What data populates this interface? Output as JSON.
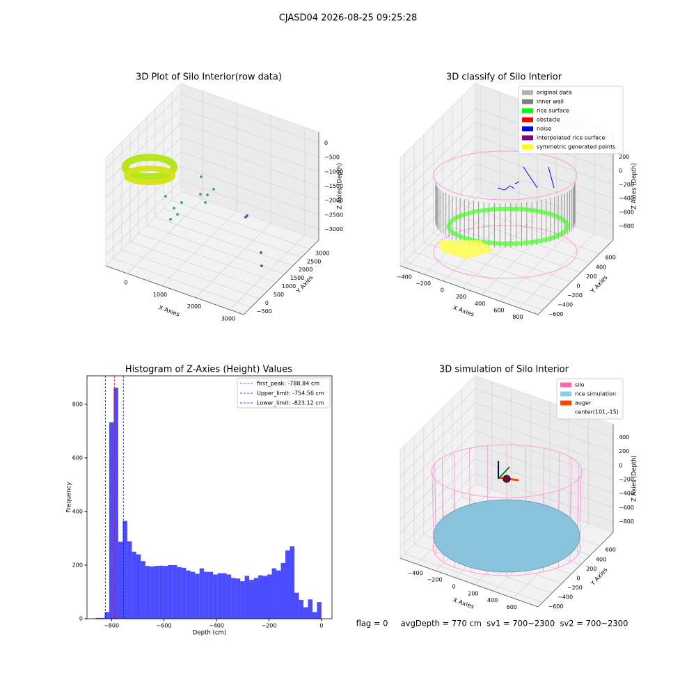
{
  "title": "CJASD04 2026-08-25 09:25:28",
  "chart_data": [
    {
      "type": "scatter3d",
      "title": "3D Plot of Silo Interior(row data)",
      "xlabel": "X Axies",
      "ylabel": "Y Axies",
      "zlabel": "Z Axies (Depth)",
      "xlim": [
        -635,
        3408
      ],
      "xticks": [
        0,
        1000,
        2000,
        3000
      ],
      "ylim": [
        -949,
        3538
      ],
      "yticks": [
        {
          "value": -500,
          "label": "−500"
        },
        0,
        500,
        1000,
        1500,
        2000,
        2500,
        3000
      ],
      "zlim": [
        -3375,
        375
      ],
      "zticks": [
        0,
        {
          "value": -500,
          "label": "−500"
        },
        {
          "value": -1000,
          "label": "−1000"
        },
        {
          "value": -1500,
          "label": "−1500"
        },
        {
          "value": -2000,
          "label": "−2000"
        },
        {
          "value": -2500,
          "label": "−2500"
        },
        {
          "value": -3000,
          "label": "−3000"
        }
      ]
    },
    {
      "type": "scatter3d",
      "title": "3D classify of Silo Interior",
      "xlabel": "X Axies",
      "ylabel": "Y Axies",
      "zlabel": "Z Axies (Depth)",
      "xlim": [
        -458,
        998
      ],
      "xticks": [
        {
          "value": -400,
          "label": "−400"
        },
        {
          "value": -200,
          "label": "−200"
        },
        0,
        200,
        400,
        600,
        800
      ],
      "ylim": [
        -695,
        884
      ],
      "yticks": [
        {
          "value": -600,
          "label": "−600"
        },
        {
          "value": -400,
          "label": "−400"
        },
        {
          "value": -200,
          "label": "−200"
        },
        0,
        200,
        400,
        600
      ],
      "zlim": [
        -1003,
        559
      ],
      "zticks": [
        {
          "value": -800,
          "label": "−800"
        },
        {
          "value": -600,
          "label": "−600"
        },
        {
          "value": -400,
          "label": "−400"
        },
        {
          "value": -200,
          "label": "−200"
        },
        0,
        200
      ],
      "legend": [
        {
          "name": "original data",
          "color": "#b3b3b3"
        },
        {
          "name": "inner wall",
          "color": "#808080"
        },
        {
          "name": "rice surface",
          "color": "#00ff00"
        },
        {
          "name": "obstacle",
          "color": "#ff0000"
        },
        {
          "name": "noise",
          "color": "#0000ff"
        },
        {
          "name": "interpolated rice surface",
          "color": "#800080"
        },
        {
          "name": "symmetric generated points",
          "color": "#ffff00"
        }
      ]
    },
    {
      "type": "histogram",
      "title": "Histogram of Z-Axies (Height) Values",
      "xlabel": "Depth (cm)",
      "ylabel": "Frequency",
      "color": "#0000ff",
      "bins": [
        -860,
        -842.8,
        -825.6,
        -808.4,
        -791.2,
        -774,
        -756.8,
        -739.6,
        -722.4,
        -705.2,
        -688,
        -670.8,
        -653.6,
        -636.4,
        -619.2,
        -602,
        -584.8,
        -567.6,
        -550.4,
        -533.2,
        -516,
        -498.8,
        -481.6,
        -464.4,
        -447.2,
        -430,
        -412.8,
        -395.6,
        -378.4,
        -361.2,
        -344,
        -326.8,
        -309.6,
        -292.4,
        -275.2,
        -258,
        -240.8,
        -223.6,
        -206.4,
        -189.2,
        -172,
        -154.8,
        -137.6,
        -120.4,
        -103.2,
        -86,
        -68.8,
        -51.6,
        -34.4,
        -17.2,
        0
      ],
      "values": [
        3,
        3,
        25,
        733,
        862,
        287,
        365,
        289,
        250,
        240,
        215,
        197,
        195,
        197,
        198,
        197,
        200,
        200,
        193,
        190,
        180,
        175,
        168,
        188,
        175,
        175,
        165,
        170,
        170,
        165,
        152,
        150,
        140,
        160,
        145,
        152,
        162,
        160,
        165,
        188,
        180,
        208,
        255,
        270,
        97,
        70,
        43,
        72,
        25,
        62
      ],
      "xlim": [
        -893,
        40
      ],
      "xticks": [
        {
          "value": -800,
          "label": "−800"
        },
        {
          "value": -600,
          "label": "−600"
        },
        {
          "value": -400,
          "label": "−400"
        },
        {
          "value": -200,
          "label": "−200"
        },
        0
      ],
      "ylim": [
        0,
        906
      ],
      "yticks": [
        0,
        200,
        400,
        600,
        800
      ],
      "vlines": [
        {
          "name": "first_peak: -788.84 cm",
          "value": -788.84,
          "color": "#ff0000"
        },
        {
          "name": "Upper_limit: -754.56 cm",
          "value": -754.56,
          "color": "#0000ff"
        },
        {
          "name": "Lower_limit: -823.12 cm",
          "value": -823.12,
          "color": "#0000ff"
        }
      ]
    },
    {
      "type": "surface3d",
      "title": "3D simulation of Silo Interior",
      "xlabel": "X Axies",
      "ylabel": "Y Axies",
      "zlabel": "Z Axies (Depth)",
      "xlim": [
        -571,
        857
      ],
      "xticks": [
        {
          "value": -400,
          "label": "−400"
        },
        {
          "value": -200,
          "label": "−200"
        },
        0,
        200,
        400,
        600
      ],
      "ylim": [
        -695,
        884
      ],
      "yticks": [
        {
          "value": -600,
          "label": "−600"
        },
        {
          "value": -400,
          "label": "−400"
        },
        {
          "value": -200,
          "label": "−200"
        },
        0,
        200,
        400,
        600
      ],
      "zlim": [
        -954,
        584
      ],
      "zticks": [
        {
          "value": -800,
          "label": "−800"
        },
        {
          "value": -600,
          "label": "−600"
        },
        {
          "value": -400,
          "label": "−400"
        },
        {
          "value": -200,
          "label": "−200"
        },
        0,
        200,
        400
      ],
      "legend": [
        {
          "name": "silo",
          "color": "#ff69b4"
        },
        {
          "name": "rice simulation",
          "color": "#87ceeb"
        },
        {
          "name": "auger",
          "color": "#ff4500"
        },
        {
          "name": "center(101,-15)",
          "color": "none"
        }
      ]
    }
  ],
  "footer": "flag = 0     avgDepth = 770 cm  sv1 = 700~2300  sv2 = 700~2300"
}
